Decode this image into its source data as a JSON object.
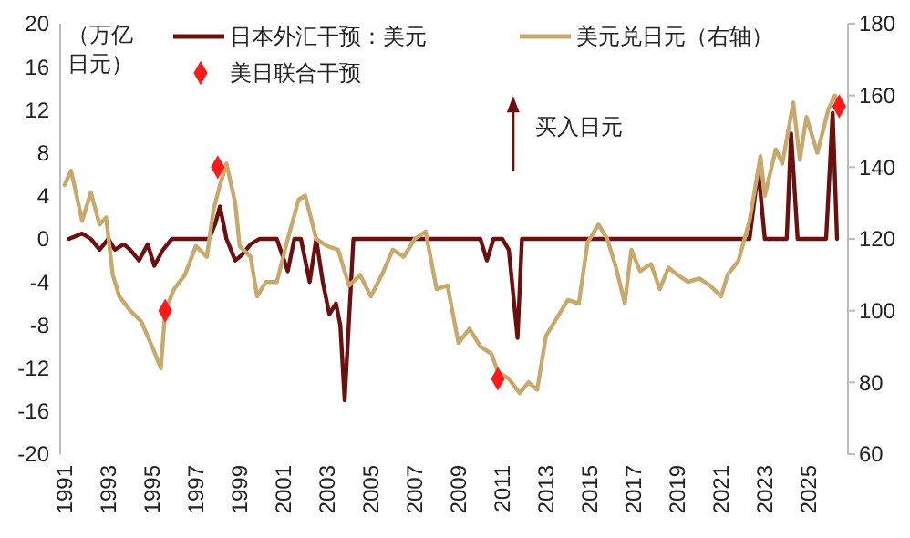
{
  "chart_data": {
    "type": "line",
    "ylabel": "（万亿日元）",
    "annotations": [
      "买入日元"
    ],
    "legend": "top",
    "grid": false,
    "marker": "none",
    "line_style": "solid",
    "xlim": [
      1990.8,
      2026.8
    ],
    "xticks": [
      1991,
      1993,
      1995,
      1997,
      1999,
      2001,
      2003,
      2005,
      2007,
      2009,
      2011,
      2013,
      2015,
      2017,
      2019,
      2021,
      2023,
      2025
    ],
    "ylim": [
      -20,
      20
    ],
    "yticks": [
      -20,
      -16,
      -12,
      -8,
      -4,
      0,
      4,
      8,
      12,
      16,
      20
    ],
    "y2lim": [
      60,
      180
    ],
    "y2ticks": [
      60,
      80,
      100,
      120,
      140,
      160,
      180
    ],
    "series": [
      {
        "name": "日本外汇干预：美元",
        "color": "#6b0f0f",
        "x": [
          1991.2,
          1991.8,
          1992.2,
          1992.6,
          1993.0,
          1993.3,
          1993.7,
          1994.0,
          1994.4,
          1994.8,
          1995.1,
          1995.5,
          1995.9,
          1996.3,
          1996.8,
          1997.2,
          1997.6,
          1997.9,
          1998.1,
          1998.4,
          1998.8,
          1999.1,
          1999.5,
          1999.9,
          2000.3,
          2000.7,
          2001.2,
          2001.5,
          2001.8,
          2002.2,
          2002.5,
          2002.8,
          2003.1,
          2003.4,
          2003.6,
          2003.8,
          2004.2,
          2010.0,
          2010.3,
          2010.6,
          2011.0,
          2011.3,
          2011.7,
          2011.9,
          2022.3,
          2022.7,
          2023.0,
          2024.0,
          2024.2,
          2024.5,
          2025.8,
          2026.1,
          2026.3
        ],
        "values": [
          0,
          0.5,
          0,
          -1,
          0,
          -1,
          -0.5,
          -1,
          -2,
          -0.5,
          -2.5,
          -1,
          0,
          0,
          0,
          0,
          0,
          1.5,
          3,
          0,
          -2,
          -1.5,
          -0.5,
          0,
          0,
          0,
          -3,
          0,
          0,
          -4,
          0,
          -4,
          -7,
          -6,
          -8,
          -15,
          0,
          0,
          -2,
          0,
          0,
          -1,
          -9.2,
          0,
          0,
          6.4,
          0,
          0,
          9.8,
          0,
          0,
          11.7,
          0
        ]
      },
      {
        "name": "美元兑日元（右轴）",
        "axis": "y2",
        "color": "#c8a96b",
        "x": [
          1991.0,
          1991.3,
          1991.8,
          1992.2,
          1992.6,
          1992.9,
          1993.2,
          1993.5,
          1994.0,
          1994.5,
          1995.0,
          1995.4,
          1995.6,
          1996.0,
          1996.5,
          1997.0,
          1997.5,
          1997.8,
          1998.1,
          1998.4,
          1998.8,
          1999.0,
          1999.5,
          1999.8,
          2000.2,
          2000.7,
          2001.2,
          2001.7,
          2002.0,
          2002.5,
          2003.0,
          2003.5,
          2004.0,
          2004.5,
          2005.0,
          2005.5,
          2006.0,
          2006.5,
          2007.0,
          2007.5,
          2008.0,
          2008.5,
          2009.0,
          2009.5,
          2010.0,
          2010.5,
          2010.8,
          2011.3,
          2011.8,
          2012.2,
          2012.6,
          2013.0,
          2013.5,
          2014.0,
          2014.5,
          2014.9,
          2015.4,
          2015.8,
          2016.2,
          2016.6,
          2016.9,
          2017.3,
          2017.8,
          2018.2,
          2018.6,
          2019.0,
          2019.5,
          2020.0,
          2020.5,
          2021.0,
          2021.3,
          2021.8,
          2022.3,
          2022.8,
          2023.0,
          2023.5,
          2023.8,
          2024.3,
          2024.6,
          2024.9,
          2025.4,
          2025.9,
          2026.2,
          2026.4
        ],
        "values": [
          135,
          139,
          125,
          133,
          124,
          126,
          110,
          104,
          100,
          97,
          90,
          84,
          100,
          106,
          110,
          118,
          115,
          128,
          135,
          141,
          130,
          118,
          115,
          104,
          108,
          108,
          120,
          131,
          132,
          120,
          118,
          117,
          107,
          110,
          104,
          110,
          117,
          115,
          120,
          122,
          106,
          107,
          91,
          95,
          90,
          88,
          83,
          81,
          77,
          80,
          78,
          93,
          98,
          103,
          102,
          119,
          124,
          120,
          112,
          102,
          117,
          111,
          113,
          106,
          112,
          110,
          108,
          109,
          107,
          104,
          110,
          114,
          125,
          143,
          132,
          145,
          141,
          158,
          142,
          154,
          144,
          156,
          160,
          158
        ]
      },
      {
        "name": "美日联合干预",
        "type": "scatter",
        "axis": "y2",
        "color": "#ff1a1a",
        "marker": "diamond",
        "x": [
          1995.6,
          1998.0,
          2010.8,
          2026.4
        ],
        "values": [
          100,
          140,
          81,
          157
        ]
      }
    ]
  }
}
